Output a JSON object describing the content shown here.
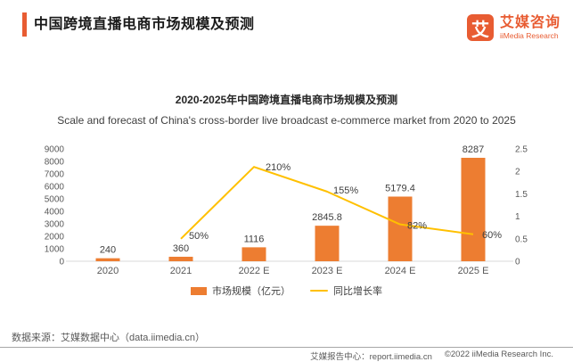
{
  "header": {
    "title": "中国跨境直播电商市场规模及预测",
    "logo": {
      "icon_char": "艾",
      "name_cn": "艾媒咨询",
      "name_en": "iiMedia Research"
    }
  },
  "colors": {
    "brand": "#E85C32",
    "bar": "#ED7D31",
    "line": "#FFC000"
  },
  "chart_data": {
    "type": "combo-bar-line",
    "title": "2020-2025年中国跨境直播电商市场规模及预测",
    "subtitle": "Scale and forecast of China's cross-border live broadcast e-commerce market from 2020 to 2025",
    "categories": [
      "2020",
      "2021",
      "2022 E",
      "2023 E",
      "2024 E",
      "2025 E"
    ],
    "series": [
      {
        "name": "市场规模（亿元）",
        "type": "bar",
        "axis": "left",
        "color": "#ED7D31",
        "values": [
          240,
          360,
          1116,
          2845.8,
          5179.4,
          8287
        ],
        "labels": [
          "240",
          "360",
          "1116",
          "2845.8",
          "5179.4",
          "8287"
        ]
      },
      {
        "name": "同比增长率",
        "type": "line",
        "axis": "right",
        "color": "#FFC000",
        "values": [
          null,
          0.5,
          2.1,
          1.55,
          0.82,
          0.6
        ],
        "labels": [
          null,
          "50%",
          "210%",
          "155%",
          "82%",
          "60%"
        ]
      }
    ],
    "left_axis": {
      "min": 0,
      "max": 9000,
      "step": 1000
    },
    "right_axis": {
      "min": 0,
      "max": 2.5,
      "step": 0.5
    },
    "grid": false,
    "legend_position": "bottom"
  },
  "footer": {
    "source": "数据来源：艾媒数据中心（data.iimedia.cn）",
    "report_center": "艾媒报告中心：report.iimedia.cn",
    "copyright": "©2022 iiMedia Research Inc."
  }
}
